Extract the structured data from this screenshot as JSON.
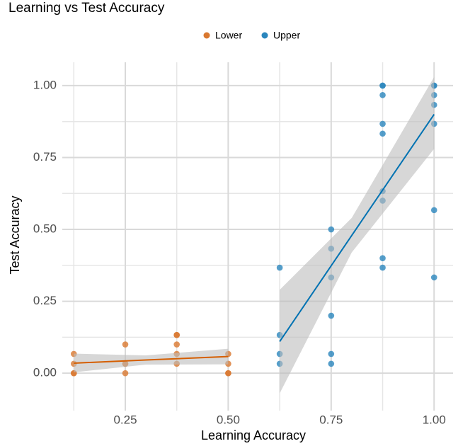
{
  "chart_data": {
    "type": "scatter",
    "title": "Learning vs Test Accuracy",
    "xlabel": "Learning Accuracy",
    "ylabel": "Test Accuracy",
    "xlim": [
      0.097,
      1.046
    ],
    "ylim": [
      -0.13,
      1.081
    ],
    "xticks": [
      {
        "value": 0.25,
        "label": "0.25"
      },
      {
        "value": 0.5,
        "label": "0.50"
      },
      {
        "value": 0.75,
        "label": "0.75"
      },
      {
        "value": 1.0,
        "label": "1.00"
      }
    ],
    "yticks": [
      {
        "value": 0,
        "label": "0.00"
      },
      {
        "value": 0.25,
        "label": "0.25"
      },
      {
        "value": 0.5,
        "label": "0.50"
      },
      {
        "value": 0.75,
        "label": "0.75"
      },
      {
        "value": 1.0,
        "label": "1.00"
      }
    ],
    "xminor": [
      0.125,
      0.375,
      0.625,
      0.875
    ],
    "yminor": [
      0.125,
      0.375,
      0.625,
      0.875
    ],
    "grid": true,
    "legend": "top",
    "band_color": "#bdbdbd",
    "series": [
      {
        "name": "Lower",
        "color": "#d9782f",
        "line_color": "#d55e00",
        "x": [
          0.125,
          0.125,
          0.125,
          0.125,
          0.25,
          0.25,
          0.25,
          0.25,
          0.375,
          0.375,
          0.375,
          0.375,
          0.375,
          0.5,
          0.5,
          0.5,
          0.5
        ],
        "values": [
          0.067,
          0.033,
          0,
          0,
          0.1,
          0.033,
          0.033,
          0,
          0.133,
          0.133,
          0.1,
          0.067,
          0.033,
          0.067,
          0.033,
          0,
          0
        ],
        "fit_x": [
          0.125,
          0.3,
          0.5
        ],
        "fit_y": [
          0.035,
          0.046,
          0.058
        ],
        "band_low": [
          0.003,
          0.03,
          0.031
        ],
        "band_high": [
          0.068,
          0.062,
          0.085
        ]
      },
      {
        "name": "Upper",
        "color": "#2a86bd",
        "line_color": "#0072b2",
        "x": [
          0.625,
          0.625,
          0.625,
          0.625,
          0.75,
          0.75,
          0.75,
          0.75,
          0.75,
          0.75,
          0.875,
          0.875,
          0.875,
          0.875,
          0.875,
          0.875,
          0.875,
          0.875,
          0.875,
          1.0,
          1.0,
          1.0,
          1.0,
          1.0,
          1.0,
          1.0
        ],
        "values": [
          0.367,
          0.133,
          0.067,
          0.033,
          0.5,
          0.433,
          0.333,
          0.2,
          0.067,
          0.033,
          1,
          1,
          0.967,
          0.867,
          0.833,
          0.633,
          0.6,
          0.4,
          0.367,
          1,
          1,
          0.967,
          0.933,
          0.867,
          0.567,
          0.333
        ],
        "fit_x": [
          0.625,
          0.8,
          1.0
        ],
        "fit_y": [
          0.11,
          0.479,
          0.9
        ],
        "band_low": [
          -0.07,
          0.42,
          0.78
        ],
        "band_high": [
          0.29,
          0.54,
          1.03
        ]
      }
    ]
  }
}
